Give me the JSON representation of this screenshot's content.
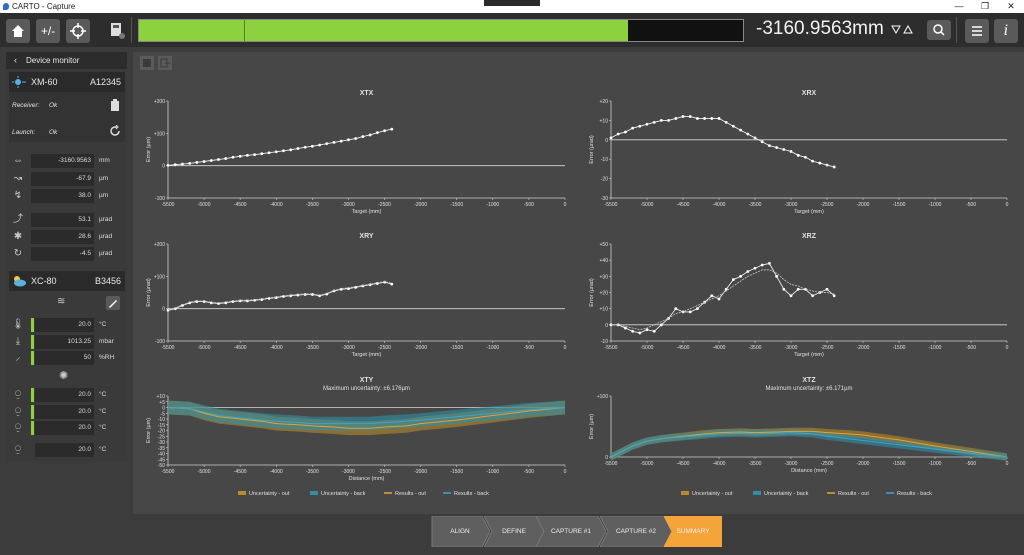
{
  "window": {
    "title": "CARTO - Capture",
    "controls": [
      "—",
      "❐",
      "✕"
    ]
  },
  "toolbar": {
    "home_icon": "home-icon",
    "plus_minus_label": "+/-",
    "target_icon": "crosshair-icon",
    "calculator_icon": "calculator-icon",
    "progress": {
      "fill_fraction": 0.81
    },
    "reading": "-3160.9563mm",
    "menu_icon": "hamburger-icon",
    "info_label": "i"
  },
  "sidebar": {
    "title": "Device monitor",
    "xm": {
      "name": "XM-60",
      "serial": "A12345",
      "receiver_label": "Receiver:",
      "receiver_value": "Ok",
      "launch_label": "Launch:",
      "launch_value": "Ok"
    },
    "readings": [
      {
        "value": "-3160.9563",
        "unit": "mm"
      },
      {
        "value": "-67.9",
        "unit": "µm"
      },
      {
        "value": "38.0",
        "unit": "µm"
      },
      {
        "value": "53.1",
        "unit": "µrad"
      },
      {
        "value": "28.6",
        "unit": "µrad"
      },
      {
        "value": "-4.5",
        "unit": "µrad"
      }
    ],
    "xc": {
      "name": "XC-80",
      "serial": "B3456"
    },
    "env": [
      {
        "value": "20.0",
        "unit": "°C"
      },
      {
        "value": "1013.25",
        "unit": "mbar"
      },
      {
        "value": "50",
        "unit": "%RH"
      }
    ],
    "material": [
      {
        "value": "20.0",
        "unit": "°C"
      },
      {
        "value": "20.0",
        "unit": "°C"
      },
      {
        "value": "20.0",
        "unit": "°C"
      },
      {
        "value": "20.0",
        "unit": "°C"
      }
    ]
  },
  "charts_text": {
    "xtx": {
      "title": "XTX",
      "ylabel": "Error (µm)",
      "xlabel": "Target (mm)"
    },
    "xrx": {
      "title": "XRX",
      "ylabel": "Error (µrad)",
      "xlabel": "Target (mm)"
    },
    "xry": {
      "title": "XRY",
      "ylabel": "Error (µrad)",
      "xlabel": "Target (mm)"
    },
    "xrz": {
      "title": "XRZ",
      "ylabel": "Error (µrad)",
      "xlabel": "Target (mm)"
    },
    "xty": {
      "title": "XTY",
      "subtitle": "Maximum uncertainty: ±6.176µm",
      "ylabel": "Error (µm)",
      "xlabel": "Distance (mm)"
    },
    "xtz": {
      "title": "XTZ",
      "subtitle": "Maximum uncertainty: ±6.171µm",
      "ylabel": "Error (µm)",
      "xlabel": "Distance (mm)"
    }
  },
  "legend": [
    "Uncertainty - out",
    "Uncertainty - back",
    "Results - out",
    "Results - back"
  ],
  "steps": [
    "ALIGN",
    "DEFINE",
    "CAPTURE #1",
    "CAPTURE #2",
    "SUMMARY"
  ],
  "colors": {
    "accent_green": "#8cd23e",
    "active_step": "#f5a43a",
    "results_out": "#e8a030",
    "results_back": "#3aa6d0",
    "unc_out": "#b88a2a",
    "unc_back": "#2f8fa8"
  },
  "chart_data": [
    {
      "type": "line",
      "title": "XTX",
      "xlabel": "Target (mm)",
      "ylabel": "Error (µm)",
      "xlim": [
        -5500,
        0
      ],
      "ylim": [
        -100,
        200
      ],
      "xticks": [
        -5500,
        -5000,
        -4500,
        -4000,
        -3500,
        -3000,
        -2500,
        -2000,
        -1500,
        -1000,
        -500,
        0
      ],
      "yticks": [
        -100,
        0,
        100,
        200
      ],
      "series": [
        {
          "x": [
            -5500,
            -5400,
            -5300,
            -5200,
            -5100,
            -5000,
            -4900,
            -4800,
            -4700,
            -4600,
            -4500,
            -4400,
            -4300,
            -4200,
            -4100,
            -4000,
            -3900,
            -3800,
            -3700,
            -3600,
            -3500,
            -3400,
            -3300,
            -3200,
            -3100,
            -3000,
            -2900,
            -2800,
            -2700,
            -2600,
            -2500,
            -2400
          ],
          "y": [
            1,
            3,
            5,
            7,
            10,
            13,
            16,
            19,
            22,
            26,
            29,
            32,
            34,
            37,
            40,
            43,
            46,
            49,
            53,
            57,
            60,
            64,
            68,
            72,
            76,
            80,
            84,
            90,
            95,
            102,
            108,
            113
          ]
        }
      ]
    },
    {
      "type": "line",
      "title": "XRX",
      "xlabel": "Target (mm)",
      "ylabel": "Error (µrad)",
      "xlim": [
        -5500,
        0
      ],
      "ylim": [
        -30,
        20
      ],
      "xticks": [
        -5500,
        -5000,
        -4500,
        -4000,
        -3500,
        -3000,
        -2500,
        -2000,
        -1500,
        -1000,
        -500,
        0
      ],
      "yticks": [
        -30,
        -20,
        -10,
        0,
        10,
        20
      ],
      "series": [
        {
          "x": [
            -5500,
            -5400,
            -5300,
            -5200,
            -5100,
            -5000,
            -4900,
            -4800,
            -4700,
            -4600,
            -4500,
            -4400,
            -4300,
            -4200,
            -4100,
            -4000,
            -3900,
            -3800,
            -3700,
            -3600,
            -3500,
            -3400,
            -3300,
            -3200,
            -3100,
            -3000,
            -2900,
            -2800,
            -2700,
            -2600,
            -2500,
            -2400
          ],
          "y": [
            1,
            3,
            4,
            6,
            7,
            8,
            9,
            10,
            10,
            11,
            12,
            12,
            11,
            11,
            11,
            11,
            9,
            7,
            5,
            3,
            1,
            -1,
            -3,
            -4,
            -5,
            -6,
            -8,
            -9,
            -11,
            -12,
            -13,
            -14
          ]
        }
      ]
    },
    {
      "type": "line",
      "title": "XRY",
      "xlabel": "Target (mm)",
      "ylabel": "Error (µrad)",
      "xlim": [
        -5500,
        0
      ],
      "ylim": [
        -100,
        200
      ],
      "xticks": [
        -5500,
        -5000,
        -4500,
        -4000,
        -3500,
        -3000,
        -2500,
        -2000,
        -1500,
        -1000,
        -500,
        0
      ],
      "yticks": [
        -100,
        0,
        100,
        200
      ],
      "series": [
        {
          "name": "out",
          "x": [
            -5500,
            -5400,
            -5300,
            -5200,
            -5100,
            -5000,
            -4900,
            -4800,
            -4700,
            -4600,
            -4500,
            -4400,
            -4300,
            -4200,
            -4100,
            -4000,
            -3900,
            -3800,
            -3700,
            -3600,
            -3500,
            -3400,
            -3300,
            -3200,
            -3100,
            -3000,
            -2900,
            -2800,
            -2700,
            -2600,
            -2500,
            -2400
          ],
          "y": [
            -5,
            0,
            10,
            18,
            22,
            22,
            18,
            16,
            18,
            22,
            24,
            24,
            26,
            28,
            32,
            34,
            38,
            40,
            42,
            44,
            44,
            40,
            45,
            55,
            60,
            62,
            66,
            70,
            74,
            78,
            82,
            76
          ]
        },
        {
          "name": "back",
          "x": [
            -5500,
            -5400,
            -5300,
            -5200,
            -5100,
            -5000,
            -4900,
            -4800,
            -4700,
            -4600,
            -4500,
            -4400,
            -4300,
            -4200,
            -4100,
            -4000,
            -3900,
            -3800,
            -3700,
            -3600,
            -3500,
            -3400,
            -3300,
            -3200,
            -3100,
            -3000,
            -2900,
            -2800,
            -2700,
            -2600,
            -2500,
            -2400
          ],
          "y": [
            -3,
            2,
            12,
            20,
            24,
            24,
            20,
            18,
            20,
            24,
            26,
            26,
            28,
            30,
            34,
            36,
            40,
            42,
            44,
            46,
            46,
            42,
            47,
            57,
            62,
            65,
            68,
            72,
            76,
            80,
            84,
            78
          ]
        }
      ]
    },
    {
      "type": "line",
      "title": "XRZ",
      "xlabel": "Target (mm)",
      "ylabel": "Error (µrad)",
      "xlim": [
        -5500,
        0
      ],
      "ylim": [
        -10,
        50
      ],
      "xticks": [
        -5500,
        -5000,
        -4500,
        -4000,
        -3500,
        -3000,
        -2500,
        -2000,
        -1500,
        -1000,
        -500,
        0
      ],
      "yticks": [
        -10,
        0,
        10,
        20,
        30,
        40,
        50
      ],
      "series": [
        {
          "name": "out",
          "x": [
            -5500,
            -5400,
            -5300,
            -5200,
            -5100,
            -5000,
            -4900,
            -4800,
            -4700,
            -4600,
            -4500,
            -4400,
            -4300,
            -4200,
            -4100,
            -4000,
            -3900,
            -3800,
            -3700,
            -3600,
            -3500,
            -3400,
            -3300,
            -3200,
            -3100,
            -3000,
            -2900,
            -2800,
            -2700,
            -2600,
            -2500,
            -2400
          ],
          "y": [
            0,
            0,
            -2,
            -4,
            -5,
            -3,
            -4,
            0,
            4,
            10,
            8,
            8,
            10,
            14,
            18,
            16,
            22,
            28,
            30,
            33,
            35,
            37,
            38,
            30,
            22,
            18,
            22,
            22,
            18,
            20,
            22,
            18
          ]
        },
        {
          "name": "back",
          "x": [
            -5500,
            -5400,
            -5300,
            -5200,
            -5100,
            -5000,
            -4900,
            -4800,
            -4700,
            -4600,
            -4500,
            -4400,
            -4300,
            -4200,
            -4100,
            -4000,
            -3900,
            -3800,
            -3700,
            -3600,
            -3500,
            -3400,
            -3300,
            -3200,
            -3100,
            -3000,
            -2900,
            -2800,
            -2700,
            -2600,
            -2500,
            -2400
          ],
          "y": [
            0,
            0,
            -1,
            -2,
            -3,
            -2,
            0,
            2,
            4,
            7,
            8,
            10,
            12,
            14,
            16,
            18,
            21,
            24,
            27,
            30,
            32,
            34,
            34,
            32,
            28,
            25,
            24,
            22,
            21,
            20,
            20,
            19
          ]
        }
      ]
    },
    {
      "type": "area",
      "title": "XTY",
      "subtitle": "Maximum uncertainty: ±6.176µm",
      "xlabel": "Distance (mm)",
      "ylabel": "Error (µm)",
      "xlim": [
        -5500,
        0
      ],
      "ylim": [
        -50,
        10
      ],
      "xticks": [
        -5500,
        -5000,
        -4500,
        -4000,
        -3500,
        -3000,
        -2500,
        -2000,
        -1500,
        -1000,
        -500,
        0
      ],
      "yticks": [
        -50,
        -45,
        -40,
        -35,
        -30,
        -25,
        -20,
        -15,
        -10,
        -5,
        0,
        5,
        10
      ],
      "x": [
        -5500,
        -5200,
        -5000,
        -4800,
        -4500,
        -4200,
        -4000,
        -3700,
        -3500,
        -3200,
        -3000,
        -2700,
        -2500,
        -2200,
        -2000,
        -1500,
        -1000,
        -500,
        0
      ],
      "series": [
        {
          "name": "Results - out",
          "values": [
            0,
            -1,
            -5,
            -8,
            -10,
            -12,
            -14,
            -15,
            -16,
            -17,
            -18,
            -18,
            -17,
            -16,
            -14,
            -11,
            -7,
            -3,
            0
          ]
        },
        {
          "name": "Results - back",
          "values": [
            0,
            -1,
            -4,
            -7,
            -9,
            -11,
            -12,
            -13,
            -14,
            -14,
            -14,
            -14,
            -13,
            -12,
            -11,
            -8,
            -5,
            -2,
            0
          ]
        },
        {
          "name": "Uncertainty - out",
          "values": [
            6,
            6,
            6,
            6,
            6,
            6,
            6,
            6,
            6,
            6,
            6,
            6,
            6,
            6,
            6,
            6,
            6,
            6,
            6
          ]
        },
        {
          "name": "Uncertainty - back",
          "values": [
            6,
            6,
            6,
            6,
            6,
            6,
            6,
            6,
            6,
            6,
            6,
            6,
            6,
            6,
            6,
            6,
            6,
            6,
            6
          ]
        }
      ]
    },
    {
      "type": "area",
      "title": "XTZ",
      "subtitle": "Maximum uncertainty: ±6.171µm",
      "xlabel": "Distance (mm)",
      "ylabel": "Error (µm)",
      "xlim": [
        -5500,
        0
      ],
      "ylim": [
        0,
        100
      ],
      "xticks": [
        -5500,
        -5000,
        -4500,
        -4000,
        -3500,
        -3000,
        -2500,
        -2000,
        -1500,
        -1000,
        -500,
        0
      ],
      "yticks": [
        0,
        100
      ],
      "x": [
        -5500,
        -5200,
        -5000,
        -4800,
        -4500,
        -4200,
        -4000,
        -3700,
        -3500,
        -3200,
        -3000,
        -2700,
        -2500,
        -2200,
        -2000,
        -1500,
        -1000,
        -500,
        0
      ],
      "series": [
        {
          "name": "Results - out",
          "values": [
            0,
            18,
            26,
            30,
            34,
            38,
            40,
            41,
            40,
            41,
            42,
            42,
            40,
            38,
            36,
            28,
            18,
            9,
            0
          ]
        },
        {
          "name": "Results - back",
          "values": [
            0,
            18,
            26,
            30,
            33,
            36,
            38,
            39,
            38,
            39,
            40,
            38,
            34,
            30,
            27,
            20,
            13,
            6,
            0
          ]
        },
        {
          "name": "Uncertainty - out",
          "values": [
            6,
            6,
            6,
            6,
            6,
            6,
            6,
            6,
            6,
            6,
            6,
            6,
            6,
            6,
            6,
            6,
            6,
            6,
            6
          ]
        },
        {
          "name": "Uncertainty - back",
          "values": [
            6,
            6,
            6,
            6,
            6,
            6,
            6,
            6,
            6,
            6,
            6,
            6,
            6,
            6,
            6,
            6,
            6,
            6,
            6
          ]
        }
      ]
    }
  ]
}
